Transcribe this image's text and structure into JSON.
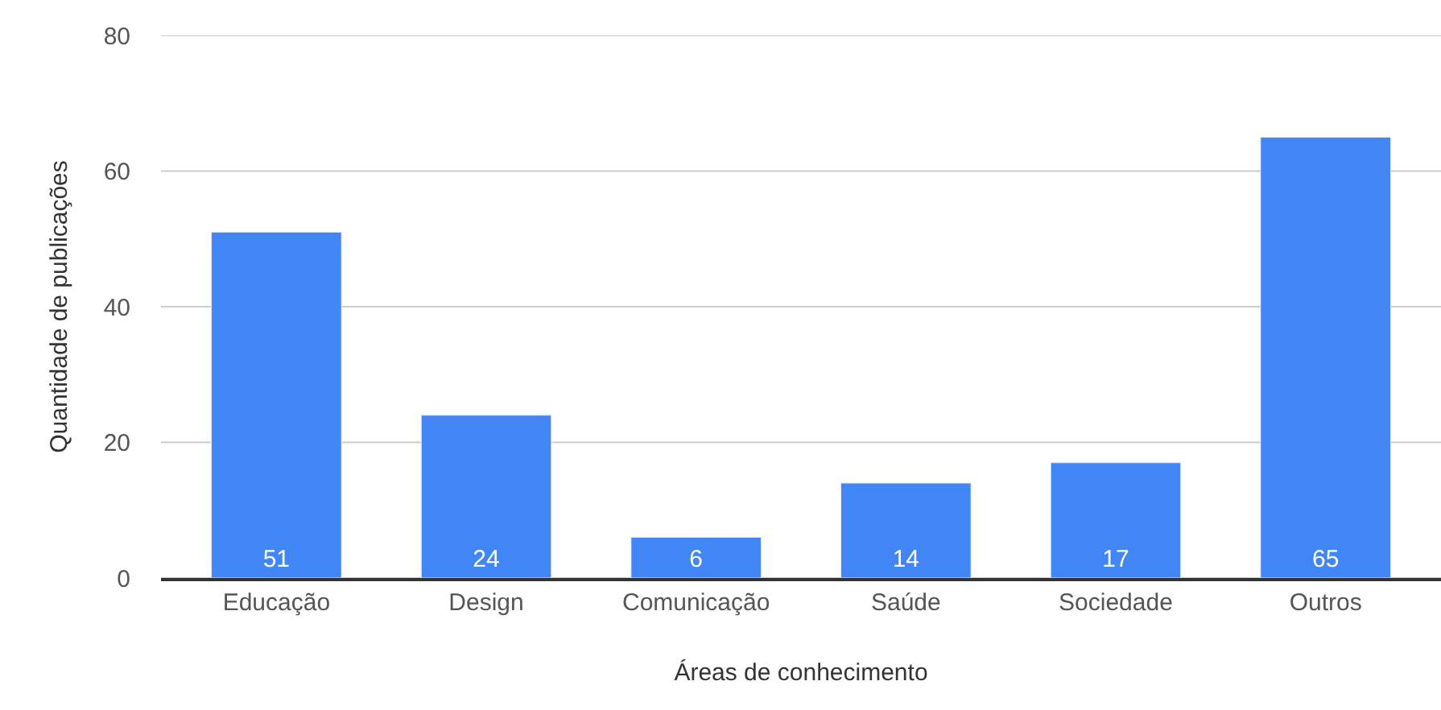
{
  "chart_data": {
    "type": "bar",
    "xlabel": "Áreas de conhecimento",
    "ylabel": "Quantidade de publicações",
    "categories": [
      "Educação",
      "Design",
      "Comunicação",
      "Saúde",
      "Sociedade",
      "Outros"
    ],
    "values": [
      51,
      24,
      6,
      14,
      17,
      65
    ],
    "color": "#4285f4",
    "ylim": [
      0,
      80
    ],
    "yticks": [
      0,
      20,
      40,
      60,
      80
    ],
    "grid": "y",
    "data_labels": true
  }
}
